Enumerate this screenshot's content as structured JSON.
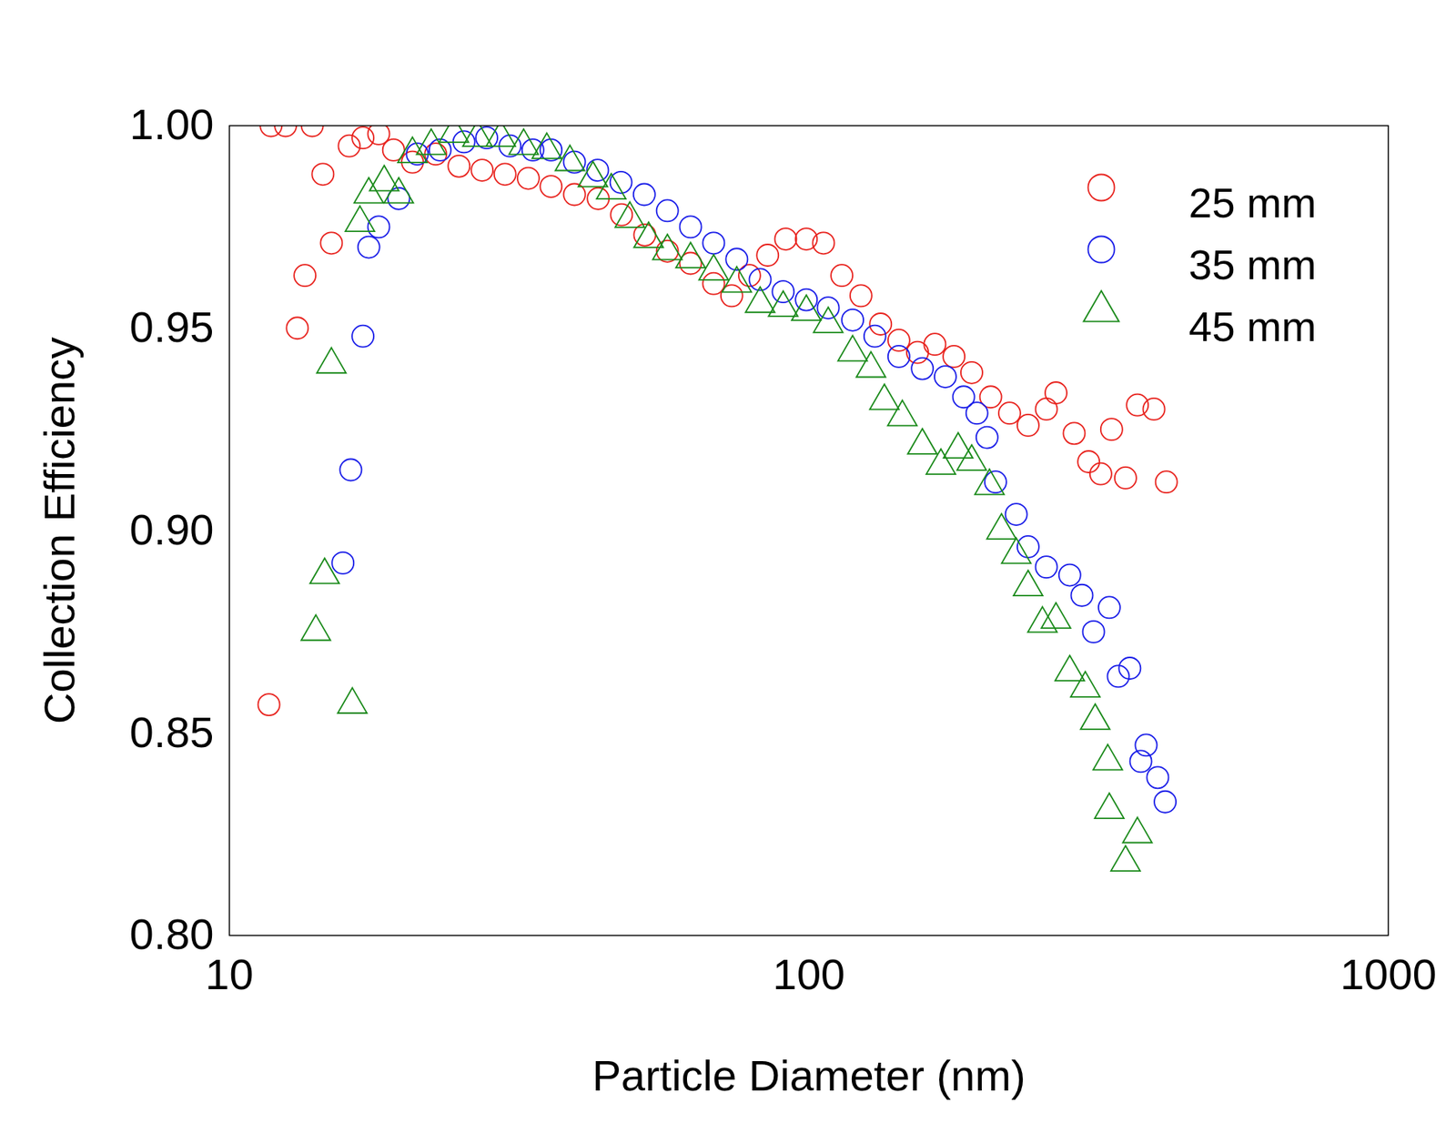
{
  "chart_data": {
    "type": "scatter",
    "xlabel": "Particle Diameter (nm)",
    "ylabel": "Collection Efficiency",
    "log": "x",
    "grid": false,
    "legend": "top-right",
    "xlim": [
      10,
      1000
    ],
    "xticks": [
      10,
      100,
      1000
    ],
    "ylim": [
      0.8,
      1.0
    ],
    "yticks": [
      {
        "value": 0.8,
        "label": "0.80"
      },
      {
        "value": 0.85,
        "label": "0.85"
      },
      {
        "value": 0.9,
        "label": "0.90"
      },
      {
        "value": 0.95,
        "label": "0.95"
      },
      {
        "value": 1.0,
        "label": "1.00"
      }
    ],
    "series": [
      {
        "name": "25 mm",
        "color": "#e8231e",
        "marker": "circle",
        "x": [
          11.8,
          12.5,
          13.9,
          11.7,
          13.1,
          13.5,
          14.5,
          15.0,
          16.1,
          17.0,
          18.1,
          19.2,
          20.7,
          22.7,
          24.9,
          27.3,
          29.9,
          32.8,
          35.9,
          39.4,
          43.3,
          47.5,
          52.1,
          57.0,
          62.5,
          68.5,
          73.6,
          79.0,
          84.9,
          91.2,
          99.0,
          106,
          114,
          123,
          133,
          143,
          154,
          165,
          178,
          191,
          206,
          222,
          239,
          257,
          267,
          287,
          304,
          319,
          333,
          352,
          369,
          394,
          414
        ],
        "values": [
          1.0,
          1.0,
          1.0,
          0.857,
          0.95,
          0.963,
          0.988,
          0.971,
          0.995,
          0.997,
          0.998,
          0.994,
          0.991,
          0.993,
          0.99,
          0.989,
          0.988,
          0.987,
          0.985,
          0.983,
          0.982,
          0.978,
          0.973,
          0.969,
          0.966,
          0.961,
          0.958,
          0.963,
          0.968,
          0.972,
          0.972,
          0.971,
          0.963,
          0.958,
          0.951,
          0.947,
          0.944,
          0.946,
          0.943,
          0.939,
          0.933,
          0.929,
          0.926,
          0.93,
          0.934,
          0.924,
          0.917,
          0.914,
          0.925,
          0.913,
          0.931,
          0.93,
          0.912
        ]
      },
      {
        "name": "35 mm",
        "color": "#1a1ee8",
        "marker": "circle",
        "x": [
          15.7,
          16.2,
          17.0,
          17.4,
          18.1,
          19.6,
          21.1,
          23.1,
          25.4,
          27.8,
          30.5,
          33.4,
          35.9,
          39.4,
          43.2,
          47.4,
          52.0,
          57.0,
          62.5,
          68.5,
          75.1,
          82.4,
          90.3,
          99.0,
          108,
          119,
          130,
          143,
          157,
          172,
          185,
          195,
          203,
          210,
          228,
          239,
          257,
          282,
          296,
          310,
          330,
          342,
          358,
          374,
          382,
          400,
          412
        ],
        "values": [
          0.892,
          0.915,
          0.948,
          0.97,
          0.975,
          0.982,
          0.993,
          0.994,
          0.996,
          0.997,
          0.995,
          0.994,
          0.994,
          0.991,
          0.989,
          0.986,
          0.983,
          0.979,
          0.975,
          0.971,
          0.967,
          0.962,
          0.959,
          0.957,
          0.955,
          0.952,
          0.948,
          0.943,
          0.94,
          0.938,
          0.933,
          0.929,
          0.923,
          0.912,
          0.904,
          0.896,
          0.891,
          0.889,
          0.884,
          0.875,
          0.881,
          0.864,
          0.866,
          0.843,
          0.847,
          0.839,
          0.833
        ]
      },
      {
        "name": "45 mm",
        "color": "#1a8a1a",
        "marker": "triangle",
        "x": [
          14.1,
          14.6,
          15.0,
          16.3,
          16.8,
          17.4,
          18.5,
          19.6,
          20.7,
          22.3,
          24.4,
          26.8,
          29.4,
          32.2,
          35.3,
          38.7,
          42.4,
          45.6,
          49.1,
          52.9,
          57.0,
          62.5,
          68.5,
          75.1,
          82.4,
          90.3,
          99.0,
          108,
          119,
          128,
          135,
          145,
          157,
          169,
          181,
          191,
          205,
          215,
          228,
          239,
          253,
          267,
          282,
          300,
          312,
          328,
          330,
          352,
          369
        ],
        "values": [
          0.875,
          0.889,
          0.941,
          0.857,
          0.976,
          0.983,
          0.986,
          0.983,
          0.993,
          0.995,
          0.998,
          0.997,
          0.997,
          0.995,
          0.994,
          0.991,
          0.987,
          0.984,
          0.977,
          0.972,
          0.969,
          0.967,
          0.964,
          0.961,
          0.956,
          0.955,
          0.954,
          0.951,
          0.944,
          0.94,
          0.932,
          0.928,
          0.921,
          0.916,
          0.92,
          0.917,
          0.911,
          0.9,
          0.894,
          0.886,
          0.877,
          0.878,
          0.865,
          0.861,
          0.853,
          0.843,
          0.831,
          0.818,
          0.825
        ]
      }
    ]
  }
}
